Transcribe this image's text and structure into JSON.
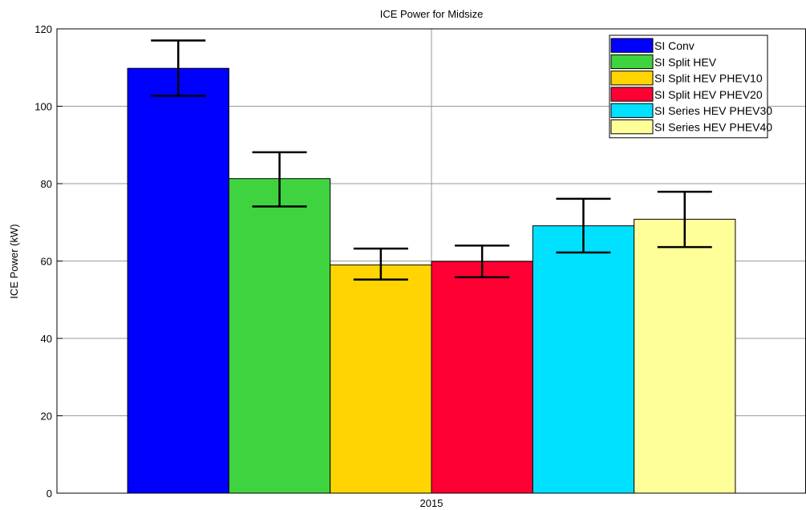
{
  "chart_data": {
    "type": "bar",
    "title": "ICE Power for Midsize",
    "xlabel": "",
    "ylabel": "ICE Power (kW)",
    "categories": [
      "2015"
    ],
    "ylim": [
      0,
      120
    ],
    "yticks": [
      "0",
      "20",
      "40",
      "60",
      "80",
      "100",
      "120"
    ],
    "grid": true,
    "legend_position": "top-right",
    "series": [
      {
        "name": "SI Conv",
        "color": "#0000ff",
        "values": [
          109.8
        ],
        "error_low": [
          102.7
        ],
        "error_high": [
          117.0
        ]
      },
      {
        "name": "SI Split HEV",
        "color": "#3fd43f",
        "values": [
          81.3
        ],
        "error_low": [
          74.1
        ],
        "error_high": [
          88.1
        ]
      },
      {
        "name": "SI Split HEV PHEV10",
        "color": "#ffd400",
        "values": [
          59.0
        ],
        "error_low": [
          55.2
        ],
        "error_high": [
          63.2
        ]
      },
      {
        "name": "SI Split HEV PHEV20",
        "color": "#ff0033",
        "values": [
          59.9
        ],
        "error_low": [
          55.8
        ],
        "error_high": [
          64.0
        ]
      },
      {
        "name": "SI Series HEV PHEV30",
        "color": "#00e0ff",
        "values": [
          69.1
        ],
        "error_low": [
          62.2
        ],
        "error_high": [
          76.1
        ]
      },
      {
        "name": "SI Series HEV PHEV40",
        "color": "#ffff99",
        "values": [
          70.8
        ],
        "error_low": [
          63.6
        ],
        "error_high": [
          77.9
        ]
      }
    ]
  }
}
